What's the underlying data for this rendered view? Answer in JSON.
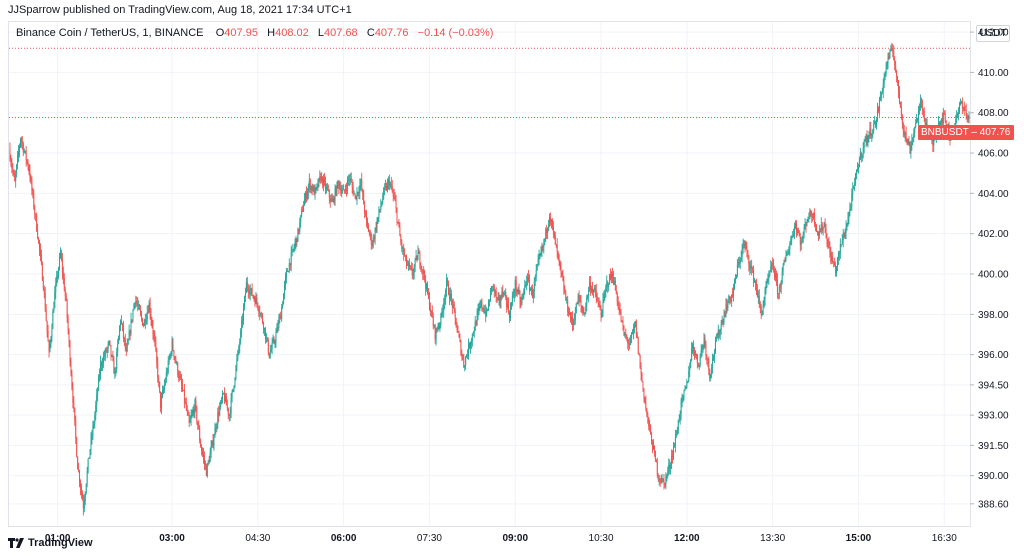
{
  "header": {
    "published_line": "JJSparrow published on TradingView.com, Aug 18, 2021 17:34 UTC+1"
  },
  "legend": {
    "symbol": "Binance Coin / TetherUS, 1, BINANCE",
    "open_label": "O",
    "open": "407.95",
    "high_label": "H",
    "high": "408.02",
    "low_label": "L",
    "low": "407.68",
    "close_label": "C",
    "close": "407.76",
    "change": "−0.14 (−0.03%)"
  },
  "price_scale": {
    "unit": "USDT"
  },
  "last_price_tag": {
    "symbol": "BNBUSDT",
    "value": "407.76"
  },
  "footer": {
    "brand": "TradingView"
  },
  "colors": {
    "up": "#26a69a",
    "down": "#ef5350",
    "grid": "#f0f3fa",
    "text": "#131722"
  },
  "chart_data": {
    "type": "candlestick",
    "title": "Binance Coin / TetherUS, 1, BINANCE",
    "xlabel": "",
    "ylabel": "",
    "grid": true,
    "ylim": [
      387.5,
      412.5
    ],
    "y_ticks": [
      "412.00",
      "410.00",
      "408.00",
      "406.00",
      "404.00",
      "402.00",
      "400.00",
      "398.00",
      "396.00",
      "394.50",
      "393.00",
      "391.50",
      "390.00",
      "388.60"
    ],
    "y_tick_values": [
      412.0,
      410.0,
      408.0,
      406.0,
      404.0,
      402.0,
      400.0,
      398.0,
      396.0,
      394.5,
      393.0,
      391.5,
      390.0,
      388.6
    ],
    "x_ticks": [
      "01:00",
      "03:00",
      "04:30",
      "06:00",
      "07:30",
      "09:00",
      "10:30",
      "12:00",
      "13:30",
      "15:00",
      "16:30"
    ],
    "x_tick_bold": [
      true,
      true,
      false,
      true,
      false,
      true,
      false,
      true,
      false,
      true,
      false
    ],
    "x_range_hours": [
      0.15,
      16.95
    ],
    "x_tick_hours": [
      1.0,
      3.0,
      4.5,
      6.0,
      7.5,
      9.0,
      10.5,
      12.0,
      13.5,
      15.0,
      16.5
    ],
    "dotted_lines": [
      411.2,
      407.76
    ],
    "path": [
      [
        0.15,
        406.2
      ],
      [
        0.25,
        404.5
      ],
      [
        0.35,
        406.8
      ],
      [
        0.5,
        405.2
      ],
      [
        0.65,
        402.0
      ],
      [
        0.75,
        399.5
      ],
      [
        0.85,
        396.0
      ],
      [
        0.95,
        399.0
      ],
      [
        1.05,
        401.0
      ],
      [
        1.15,
        398.5
      ],
      [
        1.25,
        394.5
      ],
      [
        1.35,
        390.5
      ],
      [
        1.45,
        388.5
      ],
      [
        1.55,
        391.0
      ],
      [
        1.65,
        393.0
      ],
      [
        1.75,
        395.5
      ],
      [
        1.9,
        396.5
      ],
      [
        2.0,
        395.0
      ],
      [
        2.1,
        397.8
      ],
      [
        2.2,
        396.0
      ],
      [
        2.35,
        398.8
      ],
      [
        2.5,
        397.5
      ],
      [
        2.6,
        398.5
      ],
      [
        2.7,
        396.5
      ],
      [
        2.8,
        393.5
      ],
      [
        2.9,
        395.0
      ],
      [
        3.0,
        396.5
      ],
      [
        3.1,
        395.2
      ],
      [
        3.2,
        394.0
      ],
      [
        3.3,
        392.5
      ],
      [
        3.4,
        393.5
      ],
      [
        3.5,
        391.5
      ],
      [
        3.6,
        390.2
      ],
      [
        3.7,
        391.5
      ],
      [
        3.8,
        393.0
      ],
      [
        3.9,
        394.0
      ],
      [
        4.0,
        393.0
      ],
      [
        4.1,
        395.0
      ],
      [
        4.2,
        397.0
      ],
      [
        4.3,
        399.5
      ],
      [
        4.4,
        399.0
      ],
      [
        4.5,
        398.5
      ],
      [
        4.6,
        397.5
      ],
      [
        4.7,
        396.0
      ],
      [
        4.8,
        396.8
      ],
      [
        4.9,
        398.0
      ],
      [
        5.0,
        400.0
      ],
      [
        5.1,
        401.0
      ],
      [
        5.2,
        402.0
      ],
      [
        5.3,
        403.5
      ],
      [
        5.4,
        404.5
      ],
      [
        5.5,
        404.0
      ],
      [
        5.6,
        404.8
      ],
      [
        5.7,
        404.2
      ],
      [
        5.8,
        403.5
      ],
      [
        5.9,
        404.5
      ],
      [
        6.0,
        404.0
      ],
      [
        6.1,
        404.8
      ],
      [
        6.2,
        403.8
      ],
      [
        6.3,
        404.5
      ],
      [
        6.4,
        402.5
      ],
      [
        6.5,
        401.5
      ],
      [
        6.6,
        402.8
      ],
      [
        6.7,
        404.0
      ],
      [
        6.8,
        404.6
      ],
      [
        6.9,
        403.5
      ],
      [
        7.0,
        401.5
      ],
      [
        7.1,
        400.5
      ],
      [
        7.2,
        400.0
      ],
      [
        7.3,
        401.0
      ],
      [
        7.4,
        400.0
      ],
      [
        7.5,
        398.5
      ],
      [
        7.6,
        397.0
      ],
      [
        7.7,
        397.8
      ],
      [
        7.8,
        399.5
      ],
      [
        7.9,
        398.5
      ],
      [
        8.0,
        397.0
      ],
      [
        8.1,
        395.5
      ],
      [
        8.2,
        396.5
      ],
      [
        8.3,
        397.5
      ],
      [
        8.4,
        398.5
      ],
      [
        8.5,
        398.0
      ],
      [
        8.6,
        399.5
      ],
      [
        8.7,
        398.5
      ],
      [
        8.8,
        399.2
      ],
      [
        8.9,
        398.0
      ],
      [
        9.0,
        399.5
      ],
      [
        9.1,
        398.5
      ],
      [
        9.2,
        399.8
      ],
      [
        9.3,
        399.0
      ],
      [
        9.4,
        400.5
      ],
      [
        9.5,
        401.5
      ],
      [
        9.6,
        403.0
      ],
      [
        9.7,
        401.5
      ],
      [
        9.8,
        400.0
      ],
      [
        9.9,
        398.5
      ],
      [
        10.0,
        397.5
      ],
      [
        10.1,
        398.8
      ],
      [
        10.2,
        398.0
      ],
      [
        10.3,
        399.5
      ],
      [
        10.4,
        399.0
      ],
      [
        10.5,
        398.0
      ],
      [
        10.6,
        399.5
      ],
      [
        10.7,
        400.0
      ],
      [
        10.8,
        398.5
      ],
      [
        10.9,
        397.0
      ],
      [
        11.0,
        396.5
      ],
      [
        11.1,
        397.5
      ],
      [
        11.2,
        395.0
      ],
      [
        11.3,
        393.0
      ],
      [
        11.4,
        391.5
      ],
      [
        11.5,
        390.0
      ],
      [
        11.6,
        389.6
      ],
      [
        11.7,
        390.5
      ],
      [
        11.8,
        391.8
      ],
      [
        11.9,
        393.5
      ],
      [
        12.0,
        394.5
      ],
      [
        12.1,
        396.5
      ],
      [
        12.2,
        395.5
      ],
      [
        12.3,
        396.8
      ],
      [
        12.4,
        395.0
      ],
      [
        12.5,
        396.5
      ],
      [
        12.6,
        397.5
      ],
      [
        12.7,
        398.5
      ],
      [
        12.8,
        399.0
      ],
      [
        12.9,
        400.5
      ],
      [
        13.0,
        401.5
      ],
      [
        13.1,
        400.5
      ],
      [
        13.2,
        399.5
      ],
      [
        13.3,
        398.0
      ],
      [
        13.4,
        399.5
      ],
      [
        13.5,
        400.5
      ],
      [
        13.6,
        399.0
      ],
      [
        13.7,
        400.5
      ],
      [
        13.8,
        401.5
      ],
      [
        13.9,
        402.5
      ],
      [
        14.0,
        401.5
      ],
      [
        14.1,
        402.8
      ],
      [
        14.2,
        403.0
      ],
      [
        14.3,
        402.0
      ],
      [
        14.4,
        402.5
      ],
      [
        14.5,
        401.0
      ],
      [
        14.6,
        400.2
      ],
      [
        14.7,
        401.5
      ],
      [
        14.8,
        402.5
      ],
      [
        14.9,
        404.0
      ],
      [
        15.0,
        405.5
      ],
      [
        15.1,
        406.5
      ],
      [
        15.2,
        407.0
      ],
      [
        15.3,
        407.5
      ],
      [
        15.4,
        409.0
      ],
      [
        15.5,
        410.5
      ],
      [
        15.6,
        411.2
      ],
      [
        15.7,
        409.0
      ],
      [
        15.8,
        407.0
      ],
      [
        15.9,
        406.2
      ],
      [
        16.0,
        407.5
      ],
      [
        16.1,
        408.5
      ],
      [
        16.2,
        407.2
      ],
      [
        16.3,
        406.5
      ],
      [
        16.4,
        407.5
      ],
      [
        16.5,
        407.8
      ],
      [
        16.6,
        406.8
      ],
      [
        16.7,
        407.5
      ],
      [
        16.8,
        408.6
      ],
      [
        16.9,
        407.76
      ]
    ]
  }
}
